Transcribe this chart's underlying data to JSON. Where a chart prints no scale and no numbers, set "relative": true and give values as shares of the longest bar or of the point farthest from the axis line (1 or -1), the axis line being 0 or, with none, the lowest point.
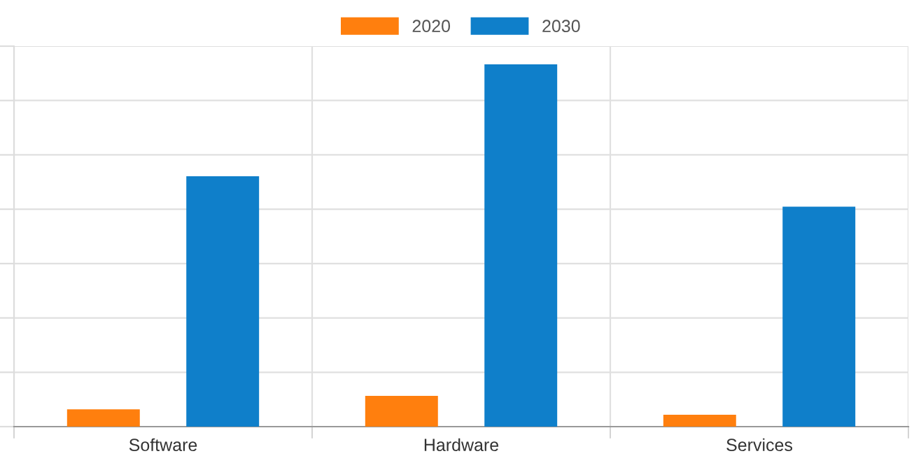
{
  "chart_data": {
    "type": "bar",
    "relative": true,
    "categories": [
      "Software",
      "Hardware",
      "Services"
    ],
    "series": [
      {
        "name": "2020",
        "color": "#ff7f0e",
        "values": [
          0.048,
          0.085,
          0.033
        ]
      },
      {
        "name": "2030",
        "color": "#0f7fca",
        "values": [
          0.691,
          1,
          0.607
        ]
      }
    ],
    "grid": true,
    "legend": "top"
  }
}
